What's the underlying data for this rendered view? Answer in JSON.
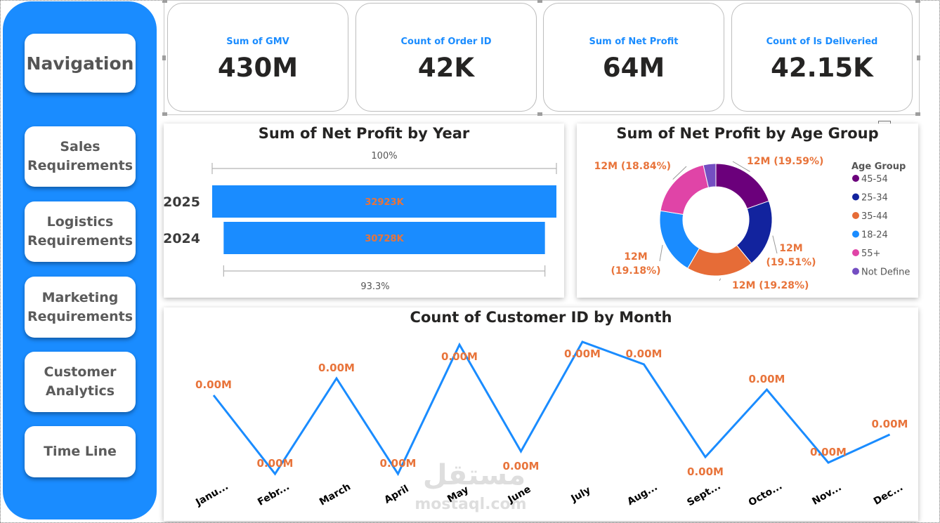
{
  "navigation": {
    "title": "Navigation",
    "items": [
      {
        "label": "Sales\nRequirements"
      },
      {
        "label": "Logistics\nRequirements"
      },
      {
        "label": "Marketing\nRequirements"
      },
      {
        "label": "Customer\nAnalytics"
      },
      {
        "label": "Time Line"
      }
    ]
  },
  "kpis": [
    {
      "label": "Sum of GMV",
      "value": "430M"
    },
    {
      "label": "Count of Order ID",
      "value": "42K"
    },
    {
      "label": "Sum of Net Profit",
      "value": "64M"
    },
    {
      "label": "Count of Is Deliveried",
      "value": "42.15K"
    }
  ],
  "colors": {
    "accent": "#1a8cff",
    "data_label": "#e8743b",
    "sidebar": "#1a8cff"
  },
  "icons": [
    "focus-mode-icon"
  ],
  "watermark": {
    "text_ar": "مستقل",
    "text_en": "mostaql.com"
  },
  "chart_data": [
    {
      "type": "bar",
      "title": "Sum of Net Profit by Year",
      "categories": [
        "2025",
        "2024"
      ],
      "values": [
        32923,
        30728
      ],
      "value_labels": [
        "32923K",
        "30728K"
      ],
      "top_ratio_label": "100%",
      "bottom_ratio_label": "93.3%",
      "color": "#1a8cff"
    },
    {
      "type": "pie",
      "title": "Sum of Net Profit by Age Group",
      "legend_title": "Age Group",
      "legend_position": "right",
      "slices": [
        {
          "name": "45-54",
          "value": 19.59,
          "label": "12M (19.59%)",
          "color": "#6b007b"
        },
        {
          "name": "25-34",
          "value": 19.51,
          "label": "12M (19.51%)",
          "color": "#12239e"
        },
        {
          "name": "35-44",
          "value": 19.28,
          "label": "12M (19.28%)",
          "color": "#e66c37"
        },
        {
          "name": "18-24",
          "value": 19.18,
          "label": "12M (19.18%)",
          "color": "#1a8cff"
        },
        {
          "name": "55+",
          "value": 18.84,
          "label": "12M (18.84%)",
          "color": "#e044a7"
        },
        {
          "name": "Not Define",
          "value": 3.6,
          "label": "",
          "color": "#744ec2"
        }
      ]
    },
    {
      "type": "line",
      "title": "Count of Customer ID by Month",
      "categories": [
        "Janu...",
        "Febr...",
        "March",
        "April",
        "May",
        "June",
        "July",
        "Aug...",
        "Sept...",
        "Octo...",
        "Nov...",
        "Dec..."
      ],
      "values": [
        3550,
        3410,
        3580,
        3410,
        3640,
        3450,
        3645,
        3605,
        3440,
        3560,
        3430,
        3480
      ],
      "value_labels": [
        "0.00M",
        "0.00M",
        "0.00M",
        "0.00M",
        "0.00M",
        "0.00M",
        "0.00M",
        "0.00M",
        "0.00M",
        "0.00M",
        "0.00M",
        "0.00M"
      ],
      "color": "#1a8cff"
    }
  ]
}
